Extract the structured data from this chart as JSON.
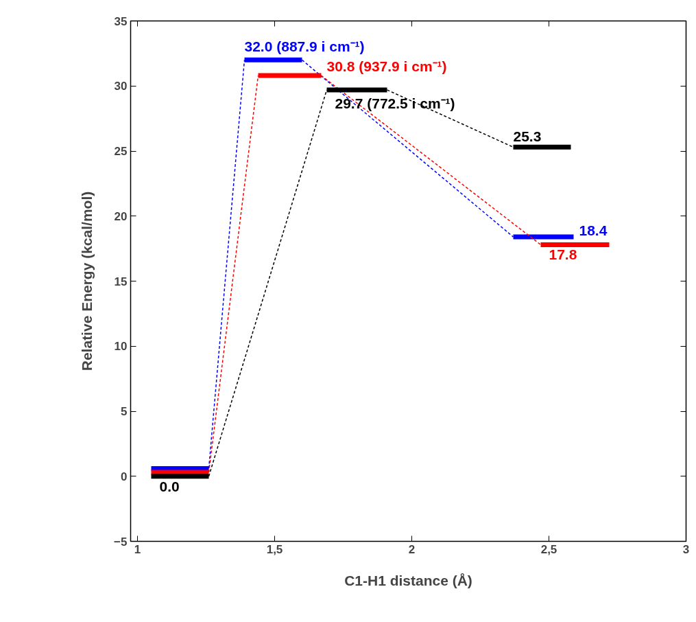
{
  "chart_data": {
    "type": "line",
    "xlabel": "C1-H1 distance (Å)",
    "ylabel": "Relative Energy (kcal/mol)",
    "xlim": [
      0.975,
      3.0
    ],
    "ylim": [
      -5,
      35
    ],
    "xticks": [
      1,
      {
        "value": 1.5,
        "label": "1,5"
      },
      2,
      {
        "value": 2.5,
        "label": "2,5"
      },
      3
    ],
    "yticks": [
      -5,
      0,
      5,
      10,
      15,
      20,
      25,
      30,
      35
    ],
    "grid": false,
    "marker": "none",
    "line_style": "dashed",
    "series": [
      {
        "color": "#0000ff",
        "x": [
          1.05,
          1.26,
          1.39,
          1.6,
          2.37,
          2.59
        ],
        "values": [
          0.6,
          0.6,
          32.0,
          32.0,
          18.4,
          18.4
        ],
        "value_labels": [
          null,
          null,
          "32.0 (887.9 i cm⁻¹)",
          null,
          null,
          "18.4"
        ]
      },
      {
        "color": "#ff0000",
        "x": [
          1.05,
          1.26,
          1.44,
          1.67,
          2.47,
          2.72
        ],
        "values": [
          0.3,
          0.3,
          30.8,
          30.8,
          17.8,
          17.8
        ],
        "value_labels": [
          null,
          null,
          null,
          "30.8 (937.9 i cm⁻¹)",
          "17.8",
          null
        ]
      },
      {
        "color": "#000000",
        "x": [
          1.05,
          1.26,
          1.69,
          1.91,
          2.37,
          2.58
        ],
        "values": [
          0.0,
          0.0,
          29.7,
          29.7,
          25.3,
          25.3
        ],
        "value_labels": [
          "0.0",
          null,
          "29.7 (772.5 i cm⁻¹)",
          null,
          "25.3",
          null
        ]
      }
    ]
  }
}
